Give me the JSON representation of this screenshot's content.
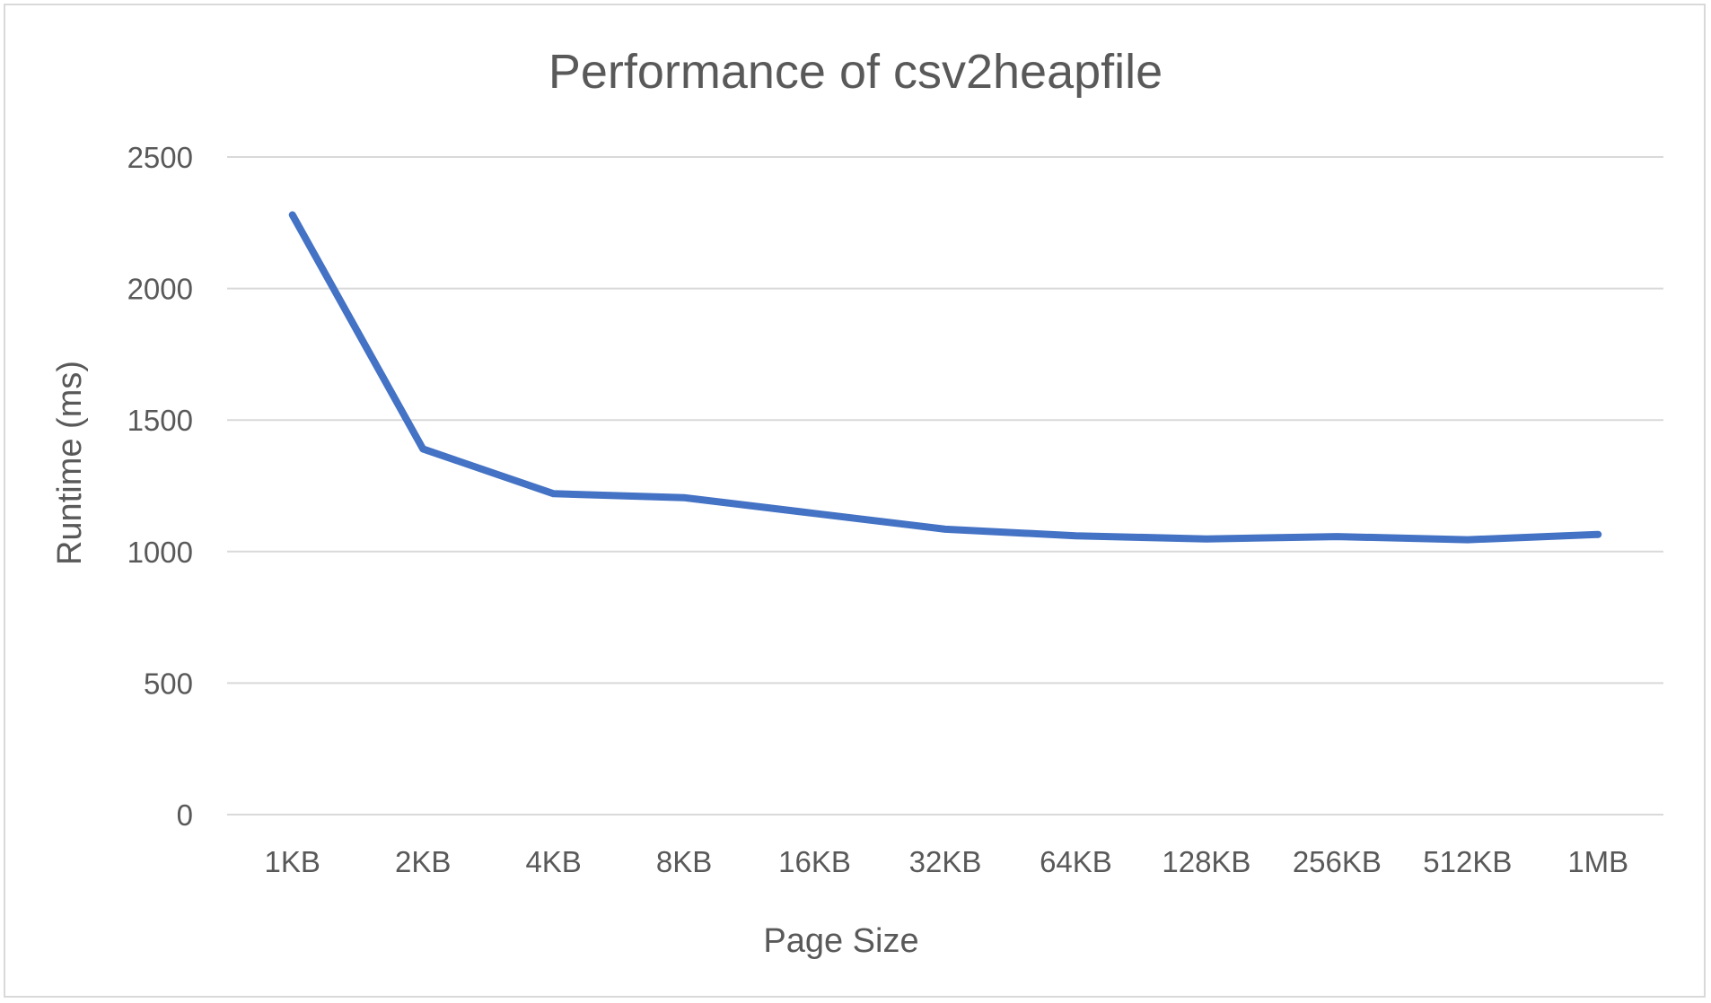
{
  "chart_data": {
    "type": "line",
    "title": "Performance of csv2heapfile",
    "xlabel": "Page Size",
    "ylabel": "Runtime (ms)",
    "categories": [
      "1KB",
      "2KB",
      "4KB",
      "8KB",
      "16KB",
      "32KB",
      "64KB",
      "128KB",
      "256KB",
      "512KB",
      "1MB"
    ],
    "series": [
      {
        "values": [
          2280,
          1390,
          1220,
          1205,
          1145,
          1085,
          1060,
          1048,
          1057,
          1045,
          1065
        ],
        "color": "#4472c4"
      }
    ],
    "ylim": [
      0,
      2500
    ],
    "yticks": [
      0,
      500,
      1000,
      1500,
      2000,
      2500
    ],
    "grid": true,
    "legend": "none"
  }
}
